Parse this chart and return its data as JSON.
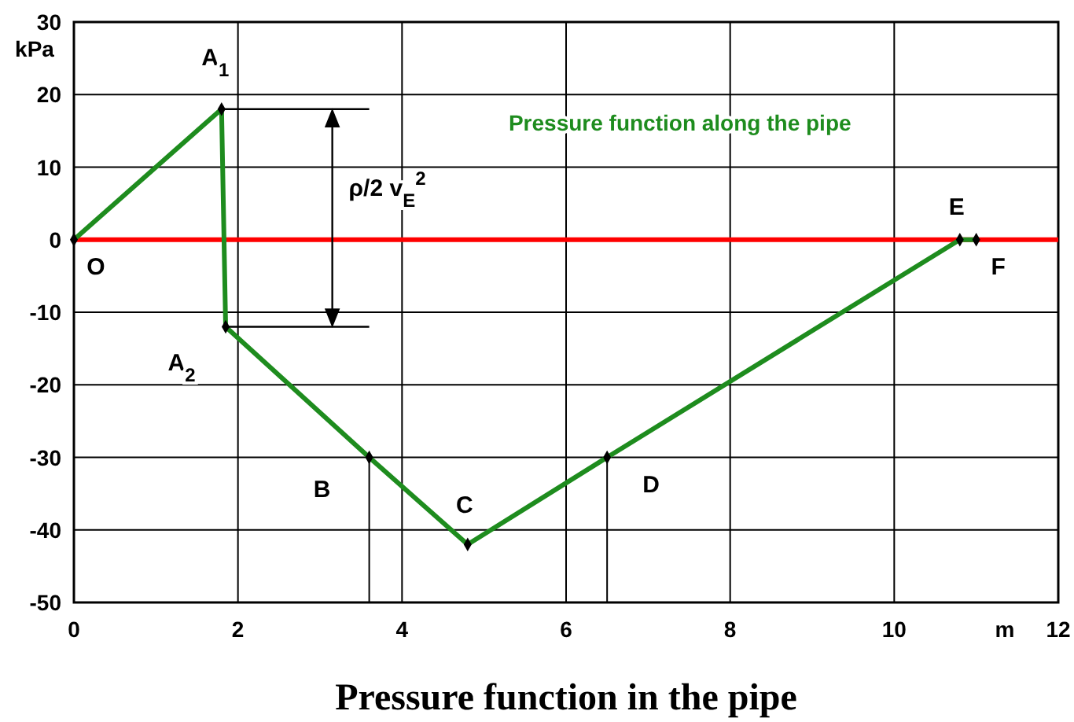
{
  "chart_data": {
    "type": "line",
    "title": "Pressure function in the pipe",
    "xlabel": "m",
    "ylabel": "kPa",
    "xlim": [
      0,
      12
    ],
    "xticks": [
      0,
      2,
      4,
      6,
      8,
      10,
      12
    ],
    "ylim": [
      -50,
      30
    ],
    "yticks": [
      -50,
      -40,
      -30,
      -20,
      -10,
      0,
      10,
      20,
      30
    ],
    "grid": true,
    "series": [
      {
        "name": "Pressure function along the pipe",
        "color": "#1e8c1e",
        "marker": "diamond",
        "x": [
          0,
          1.8,
          1.85,
          3.6,
          4.8,
          6.5,
          10.8,
          11.0
        ],
        "values": [
          0,
          18,
          -12,
          -30,
          -42,
          -30,
          0,
          0
        ]
      },
      {
        "color": "#000000",
        "x": [
          3.6,
          3.6
        ],
        "values": [
          -30,
          -50
        ]
      },
      {
        "color": "#000000",
        "x": [
          6.5,
          6.5
        ],
        "values": [
          -30,
          -50
        ]
      }
    ],
    "ref_lines": [
      {
        "axis": "y",
        "value": 0,
        "color": "#ff0000"
      }
    ],
    "annotations": [
      {
        "text": "O",
        "x": 0,
        "y": 0
      },
      {
        "text": "A$_{1}$",
        "x": 1.8,
        "y": 18
      },
      {
        "text": "A$_{2}$",
        "x": 1.85,
        "y": -12
      },
      {
        "text": "B",
        "x": 3.6,
        "y": -30
      },
      {
        "text": "C",
        "x": 4.8,
        "y": -42
      },
      {
        "text": "D",
        "x": 6.5,
        "y": -30
      },
      {
        "text": "E",
        "x": 10.8,
        "y": 0
      },
      {
        "text": "F",
        "x": 11.0,
        "y": 0
      },
      "ρ/2 v$_{E}$$^{2}$"
    ]
  }
}
